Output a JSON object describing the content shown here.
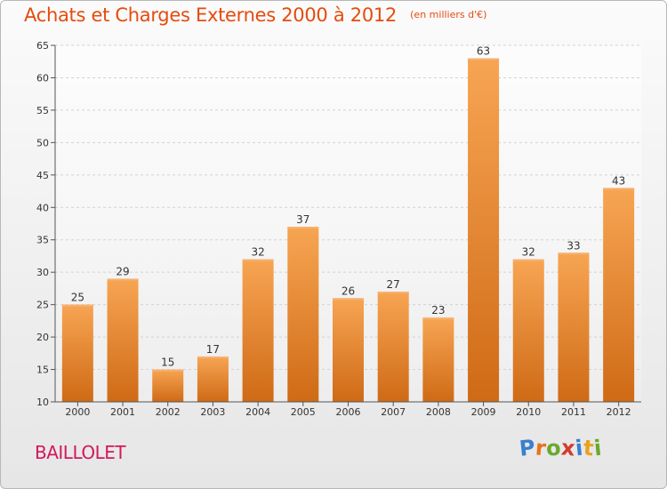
{
  "header": {
    "title": "Achats et Charges Externes 2000 à 2012",
    "subtitle": "(en milliers d'€)"
  },
  "commune": "BAILLOLET",
  "logo": {
    "text": "Proxiti",
    "letters": [
      {
        "ch": "P",
        "color": "#3a7fd0"
      },
      {
        "ch": "r",
        "color": "#e8731c"
      },
      {
        "ch": "o",
        "color": "#6aa82e"
      },
      {
        "ch": "x",
        "color": "#d43a2a"
      },
      {
        "ch": "i",
        "color": "#3a7fd0"
      },
      {
        "ch": "t",
        "color": "#e8a21c"
      },
      {
        "ch": "i",
        "color": "#6aa82e"
      }
    ]
  },
  "colors": {
    "title": "#e64b0d",
    "commune": "#d1195c",
    "bar_top": "#f7a553",
    "bar_bottom": "#cf6a16",
    "axis_text": "#333333"
  },
  "chart_data": {
    "type": "bar",
    "categories": [
      "2000",
      "2001",
      "2002",
      "2003",
      "2004",
      "2005",
      "2006",
      "2007",
      "2008",
      "2009",
      "2010",
      "2011",
      "2012"
    ],
    "values": [
      25,
      29,
      15,
      17,
      32,
      37,
      26,
      27,
      23,
      63,
      32,
      33,
      43
    ],
    "ylim": [
      10,
      65
    ],
    "yticks": [
      10,
      15,
      20,
      25,
      30,
      35,
      40,
      45,
      50,
      55,
      60,
      65
    ],
    "grid": true,
    "legend": "none"
  }
}
